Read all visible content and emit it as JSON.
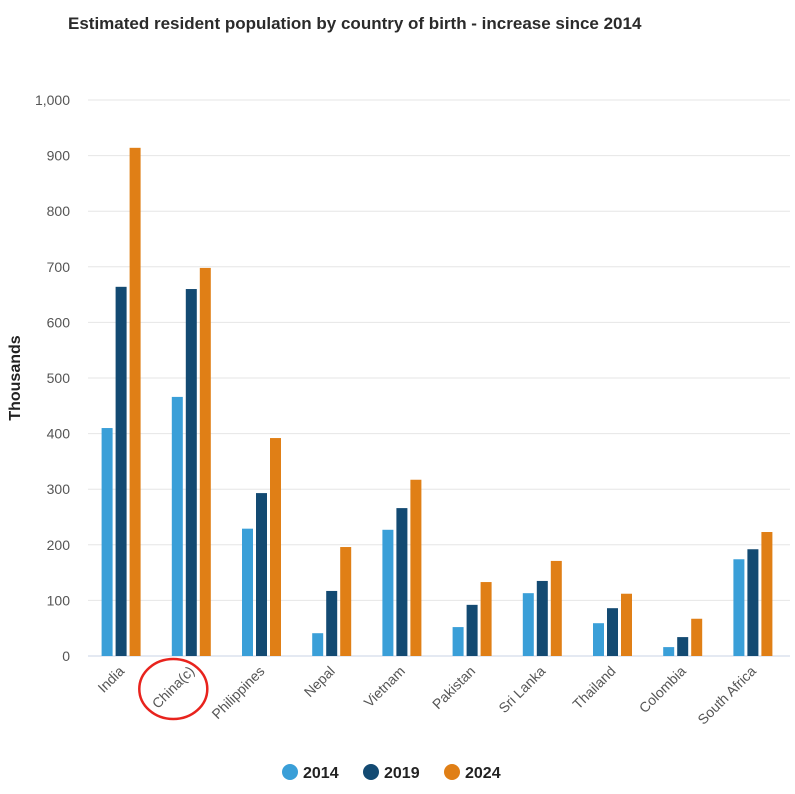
{
  "chart_data": {
    "type": "bar",
    "title": "Estimated resident population by country of birth - increase since 2014",
    "xlabel": "",
    "ylabel": "Thousands",
    "ylim": [
      0,
      1000
    ],
    "yticks": [
      0,
      100,
      200,
      300,
      400,
      500,
      600,
      700,
      800,
      900,
      1000
    ],
    "ytick_labels": [
      "0",
      "100",
      "200",
      "300",
      "400",
      "500",
      "600",
      "700",
      "800",
      "900",
      "1,000"
    ],
    "grid": true,
    "legend_position": "bottom-center",
    "categories": [
      "India",
      "China(c)",
      "Philippines",
      "Nepal",
      "Vietnam",
      "Pakistan",
      "Sri Lanka",
      "Thailand",
      "Colombia",
      "South Africa"
    ],
    "series": [
      {
        "name": "2014",
        "color": "#3a9fd8",
        "values": [
          410,
          466,
          229,
          41,
          227,
          52,
          113,
          59,
          16,
          174
        ]
      },
      {
        "name": "2019",
        "color": "#134a72",
        "values": [
          664,
          660,
          293,
          117,
          266,
          92,
          135,
          86,
          34,
          192
        ]
      },
      {
        "name": "2024",
        "color": "#e07f16",
        "values": [
          914,
          698,
          392,
          196,
          317,
          133,
          171,
          112,
          67,
          223
        ]
      }
    ],
    "annotation": {
      "type": "circle",
      "target": "China(c)",
      "color": "#e8231d"
    }
  }
}
